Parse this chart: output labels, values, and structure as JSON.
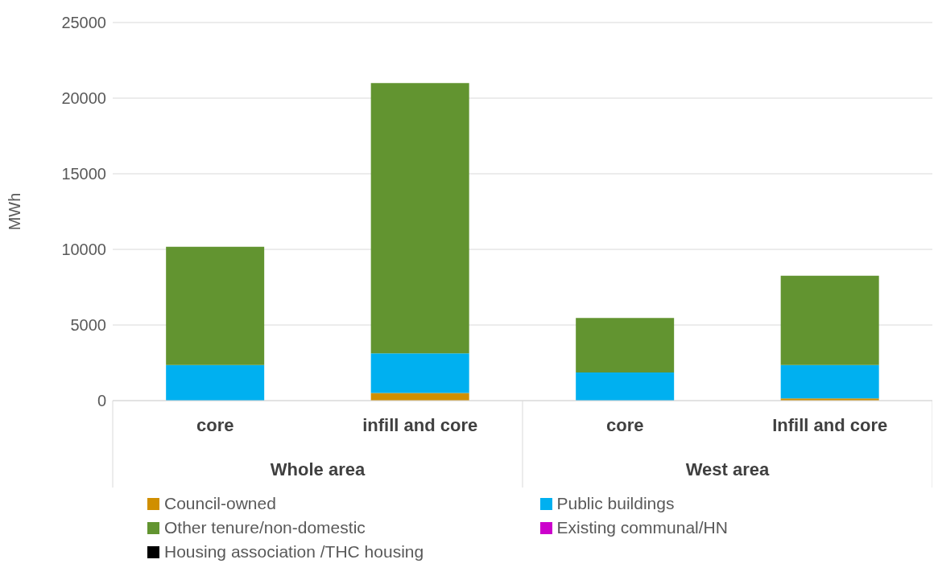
{
  "chart_data": {
    "type": "bar",
    "stacked": true,
    "ylabel": "MWh",
    "categories": [
      "core",
      "infill and core",
      "core",
      "Infill and core"
    ],
    "annotations": [
      "Whole area",
      "West area"
    ],
    "series": [
      {
        "name": "Council-owned",
        "color": "#d08f00",
        "values": [
          0,
          500,
          0,
          150
        ]
      },
      {
        "name": "Public buildings",
        "color": "#00b0f0",
        "values": [
          2350,
          2620,
          1860,
          2200
        ]
      },
      {
        "name": "Other tenure/non-domestic",
        "color": "#629430",
        "values": [
          7825,
          17880,
          3610,
          5910
        ]
      },
      {
        "name": "Existing communal/HN",
        "color": "#cc00cc",
        "values": [
          0,
          0,
          0,
          0
        ]
      },
      {
        "name": "Housing association /THC housing",
        "color": "#000000",
        "values": [
          0,
          0,
          0,
          0
        ]
      }
    ],
    "ylim": [
      0,
      25000
    ],
    "yticks": [
      0,
      5000,
      10000,
      15000,
      20000,
      25000
    ],
    "grid": "y",
    "legend": "bottom"
  }
}
